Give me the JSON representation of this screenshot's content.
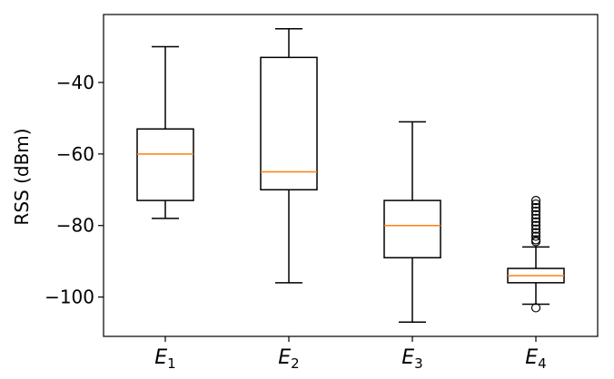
{
  "chart_data": {
    "type": "boxplot",
    "title": "",
    "xlabel": "",
    "ylabel": "RSS (dBm)",
    "ylim": [
      -111,
      -21
    ],
    "yticks": [
      -100,
      -80,
      -60,
      -40
    ],
    "categories": [
      {
        "base": "E",
        "sub": "1"
      },
      {
        "base": "E",
        "sub": "2"
      },
      {
        "base": "E",
        "sub": "3"
      },
      {
        "base": "E",
        "sub": "4"
      }
    ],
    "series": [
      {
        "whisker_low": -78,
        "q1": -73,
        "median": -60,
        "q3": -53,
        "whisker_high": -30,
        "outliers": []
      },
      {
        "whisker_low": -96,
        "q1": -70,
        "median": -65,
        "q3": -33,
        "whisker_high": -25,
        "outliers": []
      },
      {
        "whisker_low": -107,
        "q1": -89,
        "median": -80,
        "q3": -73,
        "whisker_high": -51,
        "outliers": []
      },
      {
        "whisker_low": -102,
        "q1": -96,
        "median": -94,
        "q3": -92,
        "whisker_high": -86,
        "outliers": [
          -103,
          -84.5,
          -84,
          -83,
          -82,
          -81,
          -80,
          -79,
          -78,
          -77,
          -76,
          -75,
          -74,
          -73
        ]
      }
    ],
    "colors": {
      "box": "#000000",
      "median": "#ff7f0e"
    },
    "grid": false
  }
}
